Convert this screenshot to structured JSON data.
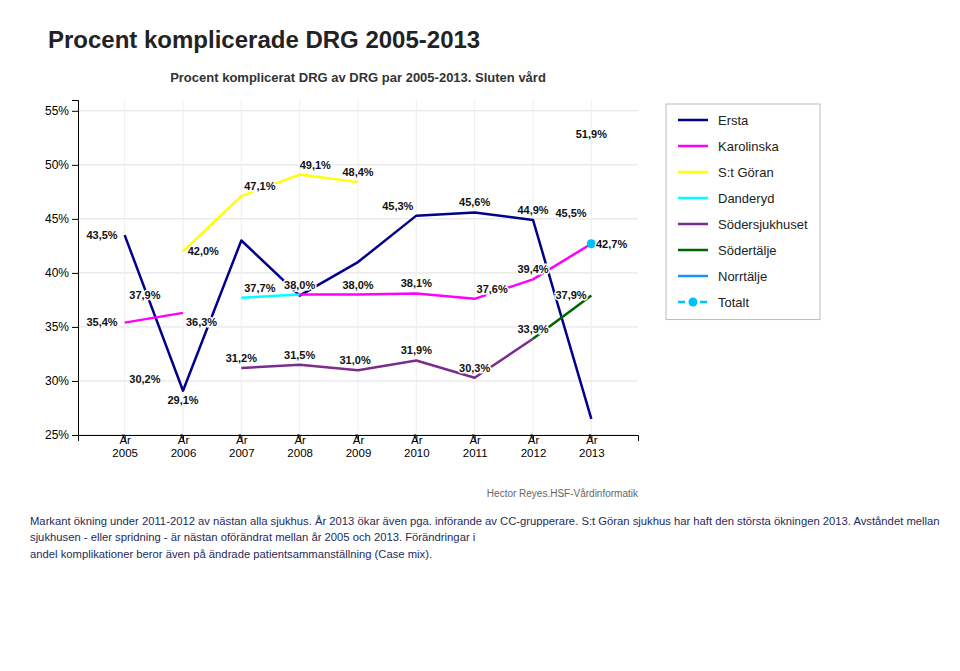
{
  "chart_data": {
    "type": "line",
    "title": "Procent komplicerade DRG 2005-2013",
    "subtitle": "Procent komplicerat DRG av DRG par 2005-2013. Sluten vård",
    "categories": [
      "År\n2005",
      "År\n2006",
      "År\n2007",
      "År\n2008",
      "År\n2009",
      "År\n2010",
      "År\n2011",
      "År\n2012",
      "År\n2013"
    ],
    "series": [
      {
        "name": "Ersta",
        "color": "#00008B",
        "line_style": "solid",
        "values": [
          43.5,
          29.1,
          43.0,
          37.9,
          41.0,
          45.3,
          45.6,
          44.9,
          26.5
        ],
        "value_labels": [
          "43,5%",
          "29,1%",
          null,
          null,
          null,
          "45,3%",
          "45,6%",
          "44,9%",
          null
        ]
      },
      {
        "name": "Karolinska",
        "color": "#FF00FF",
        "line_style": "solid",
        "values": [
          35.4,
          36.3,
          null,
          38.0,
          38.0,
          38.1,
          37.6,
          39.4,
          42.7
        ],
        "value_labels": [
          "35,4%",
          "36,3%",
          null,
          "38,0%",
          "38,0%",
          "38,1%",
          "37,6%",
          "39,4%",
          "42,7%"
        ]
      },
      {
        "name": "S:t Göran",
        "color": "#FFFF00",
        "line_style": "solid",
        "values": [
          null,
          42.0,
          47.1,
          49.1,
          48.4,
          null,
          null,
          null,
          51.9
        ],
        "value_labels": [
          null,
          "42,0%",
          "47,1%",
          "49,1%",
          "48,4%",
          null,
          null,
          null,
          "51,9%"
        ]
      },
      {
        "name": "Danderyd",
        "color": "#00FFFF",
        "line_style": "solid",
        "values": [
          37.9,
          null,
          37.7,
          38.0,
          null,
          null,
          null,
          null,
          37.9
        ],
        "value_labels": [
          "37,9%",
          null,
          "37,7%",
          null,
          null,
          null,
          null,
          null,
          "37,9%"
        ]
      },
      {
        "name": "Södersjukhuset",
        "color": "#7B2D8B",
        "line_style": "solid",
        "values": [
          null,
          null,
          31.2,
          31.5,
          31.0,
          31.9,
          30.3,
          33.9,
          null
        ],
        "value_labels": [
          null,
          null,
          "31,2%",
          "31,5%",
          "31,0%",
          "31,9%",
          "30,3%",
          "33,9%",
          null
        ]
      },
      {
        "name": "Södertälje",
        "color": "#006400",
        "line_style": "solid",
        "values": [
          30.2,
          null,
          null,
          null,
          null,
          null,
          null,
          33.9,
          37.9
        ],
        "value_labels": [
          "30,2%",
          null,
          null,
          null,
          null,
          null,
          null,
          null,
          null
        ]
      },
      {
        "name": "Norrtälje",
        "color": "#1E90FF",
        "line_style": "solid",
        "values": [
          null,
          null,
          null,
          null,
          null,
          null,
          null,
          null,
          45.5
        ],
        "value_labels": [
          null,
          null,
          null,
          null,
          null,
          null,
          null,
          null,
          "45,5%"
        ]
      },
      {
        "name": "Totalt",
        "color": "#00BFFF",
        "line_style": "dashed",
        "marker": "circle",
        "values": [
          null,
          null,
          null,
          null,
          null,
          null,
          null,
          null,
          42.7
        ]
      }
    ],
    "ylim": [
      25,
      56
    ],
    "yticks": [
      {
        "value": 25,
        "label": "25%"
      },
      {
        "value": 30,
        "label": "30%"
      },
      {
        "value": 35,
        "label": "35%"
      },
      {
        "value": 40,
        "label": "40%"
      },
      {
        "value": 45,
        "label": "45%"
      },
      {
        "value": 50,
        "label": "50%"
      },
      {
        "value": 55,
        "label": "55%"
      }
    ],
    "grid": true,
    "legend": "right",
    "data_labels": true,
    "annotations": [
      "Markant ökning under 2011-2012 av nästan alla sjukhus. År 2013 ökar även pga. införande av CC-grupperare. S:t Göran sjukhus har haft den största ökningen 2013. Avståndet mellan\nsjukhusen - eller spridning - är nästan oförändrat mellan år 2005 och 2013. Förändringar i\nandel komplikationer beror även på ändrade patientsammanställning (Case mix).",
      "Hector Reyes.HSF-Vårdinformatik"
    ]
  }
}
